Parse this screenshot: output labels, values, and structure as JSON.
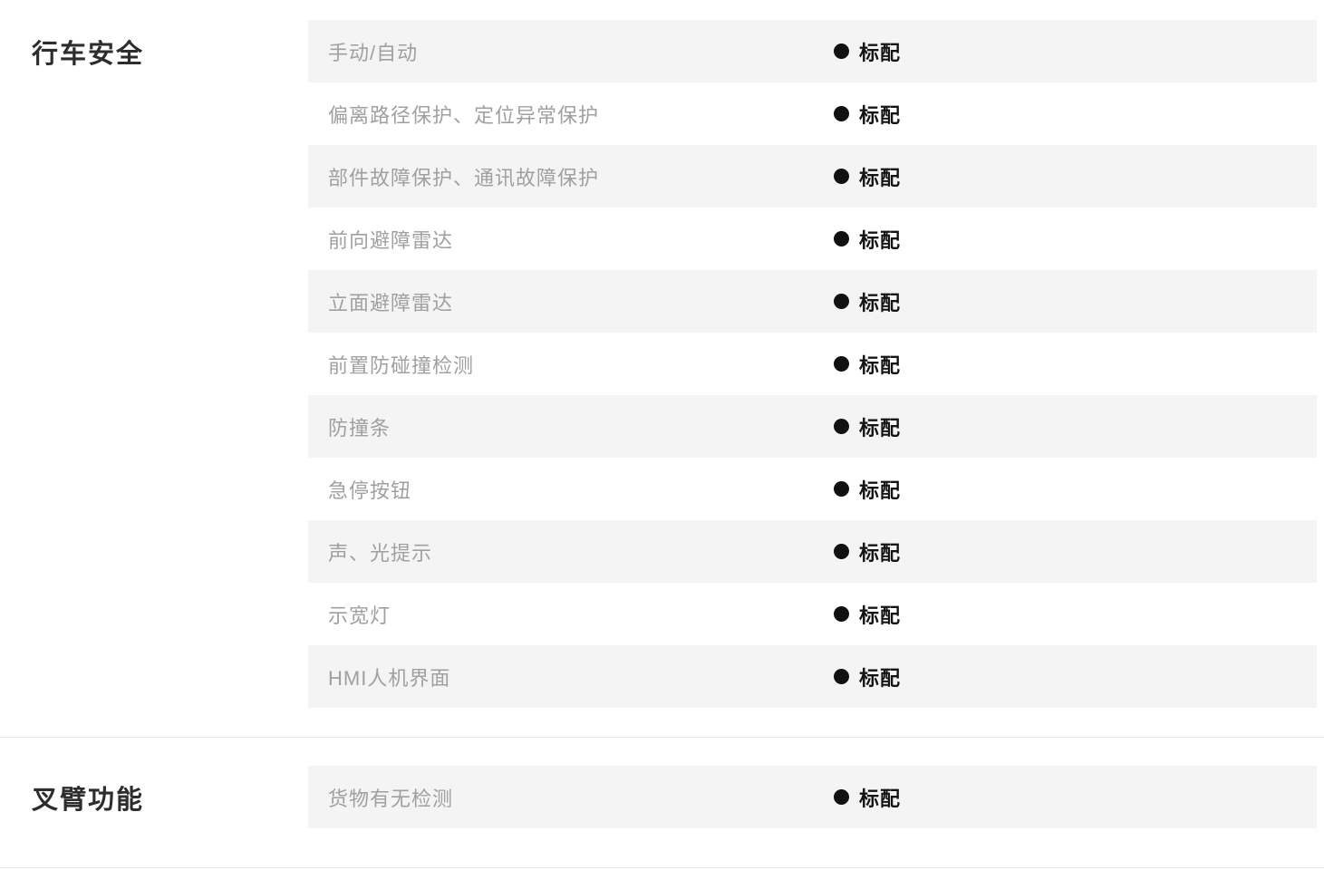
{
  "colors": {
    "row_alt_bg": "#f4f4f4",
    "label_text": "#a0a0a0",
    "section_title_text": "#2d2d2d",
    "value_text": "#151515",
    "marker_dot": "#111111",
    "divider": "#e7e7e7",
    "page_bg": "#ffffff"
  },
  "icons": {
    "standard_marker": "filled-circle"
  },
  "sections": [
    {
      "title": "行车安全",
      "rows": [
        {
          "label": "手动/自动",
          "value": "标配"
        },
        {
          "label": "偏离路径保护、定位异常保护",
          "value": "标配"
        },
        {
          "label": "部件故障保护、通讯故障保护",
          "value": "标配"
        },
        {
          "label": "前向避障雷达",
          "value": "标配"
        },
        {
          "label": "立面避障雷达",
          "value": "标配"
        },
        {
          "label": "前置防碰撞检测",
          "value": "标配"
        },
        {
          "label": "防撞条",
          "value": "标配"
        },
        {
          "label": "急停按钮",
          "value": "标配"
        },
        {
          "label": "声、光提示",
          "value": "标配"
        },
        {
          "label": "示宽灯",
          "value": "标配"
        },
        {
          "label": "HMI人机界面",
          "value": "标配"
        }
      ]
    },
    {
      "title": "叉臂功能",
      "rows": [
        {
          "label": "货物有无检测",
          "value": "标配"
        }
      ]
    }
  ]
}
